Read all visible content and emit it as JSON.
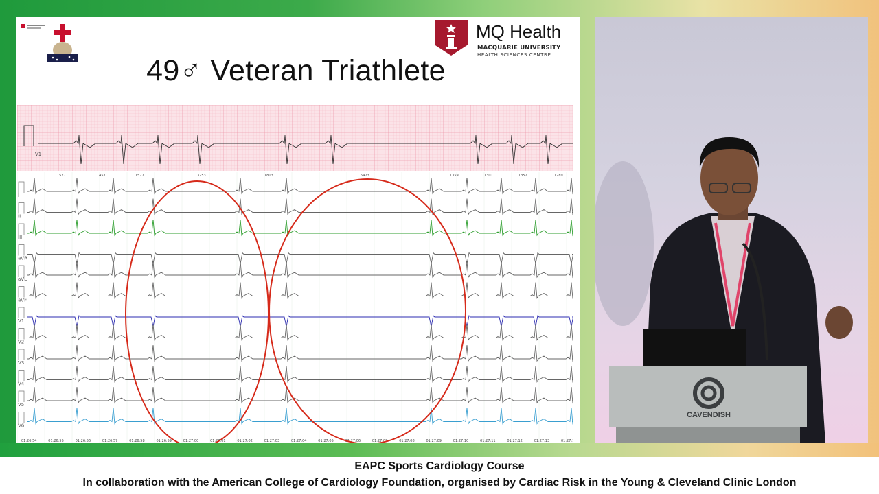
{
  "slide": {
    "title": "49♂ Veteran Triathlete",
    "logo_brand": "MQ Health",
    "logo_line1": "MACQUARIE UNIVERSITY",
    "logo_line2": "HEALTH SCIENCES CENTRE"
  },
  "ecg": {
    "rhythm_lead": "V1",
    "leads": [
      "I",
      "II",
      "III",
      "aVR",
      "aVL",
      "aVF",
      "V1",
      "V2",
      "V3",
      "V4",
      "V5",
      "V6"
    ],
    "interval_labels": [
      "1527",
      "1457",
      "1527",
      "3253",
      "1813",
      "5473",
      "1359",
      "1301",
      "1352",
      "1289"
    ],
    "time_labels": [
      "01:26:54",
      "01:26:55",
      "01:26:56",
      "01:26:57",
      "01:26:58",
      "01:26:59",
      "01:27:00",
      "01:27:01",
      "01:27:02",
      "01:27:03",
      "01:27:04",
      "01:27:05",
      "01:27:06",
      "01:27:07",
      "01:27:08",
      "01:27:09",
      "01:27:10",
      "01:27:11",
      "01:27:12",
      "01:27:13",
      "01:27:14"
    ],
    "lead_colors": {
      "I": "#666666",
      "II": "#666666",
      "III": "#2e9e2e",
      "aVR": "#666666",
      "aVL": "#666666",
      "aVF": "#666666",
      "V1": "#2b2bb0",
      "V2": "#666666",
      "V3": "#666666",
      "V4": "#666666",
      "V5": "#666666",
      "V6": "#3a9fd0"
    },
    "highlight_color": "#d62a1a"
  },
  "speaker_video": {
    "podium_brand": "CAVENDISH"
  },
  "caption": {
    "line1": "EAPC Sports Cardiology Course",
    "line2": "In collaboration with the American College of Cardiology Foundation, organised by Cardiac Risk in the Young & Cleveland Clinic London"
  }
}
